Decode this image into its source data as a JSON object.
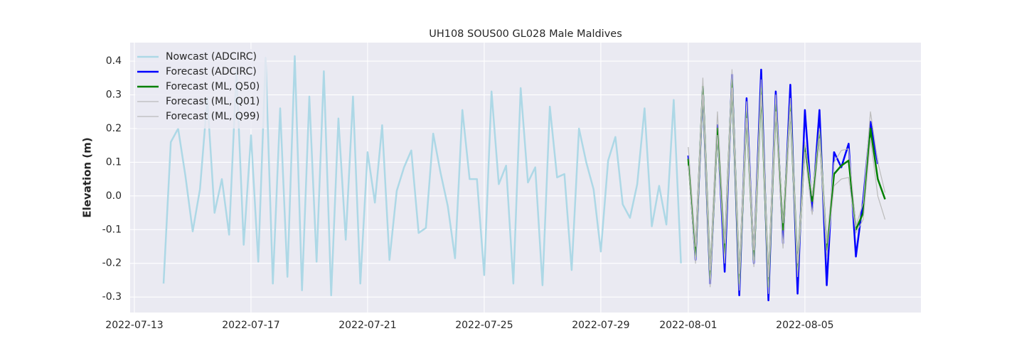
{
  "chart_data": {
    "type": "line",
    "title": "UH108 SOUS00 GL028 Male Maldives",
    "y_label": "Elevation (m)",
    "xlim": [
      "2022-07-12 20:30",
      "2022-08-08 23:30"
    ],
    "xticks": [
      "2022-07-13",
      "2022-07-17",
      "2022-07-21",
      "2022-07-25",
      "2022-07-29",
      "2022-08-01",
      "2022-08-05"
    ],
    "ylim": [
      -0.346,
      0.455
    ],
    "yticks": [
      -0.3,
      -0.2,
      -0.1,
      {
        "value": 0,
        "label": "0.0"
      },
      0.1,
      0.2,
      0.3,
      0.4
    ],
    "grid": true,
    "legend": "upper left",
    "series": [
      {
        "name": "Nowcast (ADCIRC)",
        "color": "#add8e6",
        "linewidth": 2.5,
        "x": [
          "2022-07-14 00:00",
          "2022-07-14 06:00",
          "2022-07-14 12:00",
          "2022-07-14 18:00",
          "2022-07-15 00:00",
          "2022-07-15 06:00",
          "2022-07-15 12:00",
          "2022-07-15 18:00",
          "2022-07-16 00:00",
          "2022-07-16 06:00",
          "2022-07-16 12:00",
          "2022-07-16 18:00",
          "2022-07-17 00:00",
          "2022-07-17 06:00",
          "2022-07-17 12:00",
          "2022-07-17 18:00",
          "2022-07-18 00:00",
          "2022-07-18 06:00",
          "2022-07-18 12:00",
          "2022-07-18 18:00",
          "2022-07-19 00:00",
          "2022-07-19 06:00",
          "2022-07-19 12:00",
          "2022-07-19 18:00",
          "2022-07-20 00:00",
          "2022-07-20 06:00",
          "2022-07-20 12:00",
          "2022-07-20 18:00",
          "2022-07-21 00:00",
          "2022-07-21 06:00",
          "2022-07-21 12:00",
          "2022-07-21 18:00",
          "2022-07-22 00:00",
          "2022-07-22 06:00",
          "2022-07-22 12:00",
          "2022-07-22 18:00",
          "2022-07-23 00:00",
          "2022-07-23 06:00",
          "2022-07-23 12:00",
          "2022-07-23 18:00",
          "2022-07-24 00:00",
          "2022-07-24 06:00",
          "2022-07-24 12:00",
          "2022-07-24 18:00",
          "2022-07-25 00:00",
          "2022-07-25 06:00",
          "2022-07-25 12:00",
          "2022-07-25 18:00",
          "2022-07-26 00:00",
          "2022-07-26 06:00",
          "2022-07-26 12:00",
          "2022-07-26 18:00",
          "2022-07-27 00:00",
          "2022-07-27 06:00",
          "2022-07-27 12:00",
          "2022-07-27 18:00",
          "2022-07-28 00:00",
          "2022-07-28 06:00",
          "2022-07-28 12:00",
          "2022-07-28 18:00",
          "2022-07-29 00:00",
          "2022-07-29 06:00",
          "2022-07-29 12:00",
          "2022-07-29 18:00",
          "2022-07-30 00:00",
          "2022-07-30 06:00",
          "2022-07-30 12:00",
          "2022-07-30 18:00",
          "2022-07-31 00:00",
          "2022-07-31 06:00",
          "2022-07-31 12:00",
          "2022-07-31 18:00"
        ],
        "values": [
          -0.26,
          0.16,
          0.2,
          0.06,
          -0.105,
          0.02,
          0.29,
          -0.05,
          0.05,
          -0.115,
          0.37,
          -0.145,
          0.18,
          -0.195,
          0.41,
          -0.26,
          0.26,
          -0.24,
          0.415,
          -0.28,
          0.295,
          -0.195,
          0.37,
          -0.295,
          0.23,
          -0.13,
          0.295,
          -0.26,
          0.13,
          -0.02,
          0.21,
          -0.19,
          0.015,
          0.085,
          0.135,
          -0.11,
          -0.095,
          0.185,
          0.07,
          -0.03,
          -0.185,
          0.255,
          0.05,
          0.05,
          -0.235,
          0.31,
          0.035,
          0.09,
          -0.26,
          0.32,
          0.04,
          0.085,
          -0.265,
          0.265,
          0.055,
          0.065,
          -0.22,
          0.2,
          0.1,
          0.02,
          -0.165,
          0.105,
          0.175,
          -0.025,
          -0.065,
          0.035,
          0.26,
          -0.09,
          0.03,
          -0.085,
          0.285,
          -0.2
        ]
      },
      {
        "name": "Forecast (ADCIRC)",
        "color": "#0000ff",
        "linewidth": 2.5,
        "x": [
          "2022-08-01 00:00",
          "2022-08-01 06:00",
          "2022-08-01 12:00",
          "2022-08-01 18:00",
          "2022-08-02 00:00",
          "2022-08-02 06:00",
          "2022-08-02 12:00",
          "2022-08-02 18:00",
          "2022-08-03 00:00",
          "2022-08-03 06:00",
          "2022-08-03 12:00",
          "2022-08-03 18:00",
          "2022-08-04 00:00",
          "2022-08-04 06:00",
          "2022-08-04 12:00",
          "2022-08-04 18:00",
          "2022-08-05 00:00",
          "2022-08-05 06:00",
          "2022-08-05 12:00",
          "2022-08-05 18:00",
          "2022-08-06 00:00",
          "2022-08-06 06:00",
          "2022-08-06 12:00",
          "2022-08-06 18:00",
          "2022-08-07 00:00",
          "2022-08-07 06:00",
          "2022-08-07 12:00"
        ],
        "values": [
          0.12,
          -0.19,
          0.32,
          -0.26,
          0.21,
          -0.225,
          0.36,
          -0.295,
          0.29,
          -0.2,
          0.375,
          -0.31,
          0.31,
          -0.14,
          0.33,
          -0.29,
          0.255,
          -0.045,
          0.255,
          -0.265,
          0.13,
          0.085,
          0.155,
          -0.18,
          -0.01,
          0.22,
          0.095
        ]
      },
      {
        "name": "Forecast (ML, Q50)",
        "color": "#008000",
        "linewidth": 2.5,
        "x": [
          "2022-08-01 00:00",
          "2022-08-01 06:00",
          "2022-08-01 12:00",
          "2022-08-01 18:00",
          "2022-08-02 00:00",
          "2022-08-02 06:00",
          "2022-08-02 12:00",
          "2022-08-02 18:00",
          "2022-08-03 00:00",
          "2022-08-03 06:00",
          "2022-08-03 12:00",
          "2022-08-03 18:00",
          "2022-08-04 00:00",
          "2022-08-04 06:00",
          "2022-08-04 12:00",
          "2022-08-04 18:00",
          "2022-08-05 00:00",
          "2022-08-05 06:00",
          "2022-08-05 12:00",
          "2022-08-05 18:00",
          "2022-08-06 00:00",
          "2022-08-06 06:00",
          "2022-08-06 12:00",
          "2022-08-06 18:00",
          "2022-08-07 00:00",
          "2022-08-07 06:00",
          "2022-08-07 12:00",
          "2022-08-07 18:00"
        ],
        "values": [
          0.11,
          -0.18,
          0.325,
          -0.245,
          0.2,
          -0.17,
          0.345,
          -0.26,
          0.25,
          -0.19,
          0.32,
          -0.27,
          0.27,
          -0.1,
          0.27,
          -0.22,
          0.15,
          -0.015,
          0.19,
          -0.16,
          0.065,
          0.09,
          0.105,
          -0.1,
          -0.05,
          0.2,
          0.05,
          -0.01
        ]
      },
      {
        "name": "Forecast (ML, Q01)",
        "color": "#bbbbbb",
        "linewidth": 1.2,
        "x": [
          "2022-08-01 00:00",
          "2022-08-01 06:00",
          "2022-08-01 12:00",
          "2022-08-01 18:00",
          "2022-08-02 00:00",
          "2022-08-02 06:00",
          "2022-08-02 12:00",
          "2022-08-02 18:00",
          "2022-08-03 00:00",
          "2022-08-03 06:00",
          "2022-08-03 12:00",
          "2022-08-03 18:00",
          "2022-08-04 00:00",
          "2022-08-04 06:00",
          "2022-08-04 12:00",
          "2022-08-04 18:00",
          "2022-08-05 00:00",
          "2022-08-05 06:00",
          "2022-08-05 12:00",
          "2022-08-05 18:00",
          "2022-08-06 00:00",
          "2022-08-06 06:00",
          "2022-08-06 12:00",
          "2022-08-06 18:00",
          "2022-08-07 00:00",
          "2022-08-07 06:00",
          "2022-08-07 12:00",
          "2022-08-07 18:00"
        ],
        "values": [
          0.09,
          -0.2,
          0.3,
          -0.27,
          0.18,
          -0.2,
          0.32,
          -0.28,
          0.23,
          -0.21,
          0.3,
          -0.29,
          0.25,
          -0.155,
          0.25,
          -0.24,
          0.13,
          -0.055,
          0.17,
          -0.18,
          0.03,
          0.05,
          0.055,
          -0.11,
          -0.07,
          0.17,
          0.0,
          -0.07
        ]
      },
      {
        "name": "Forecast (ML, Q99)",
        "color": "#bbbbbb",
        "linewidth": 1.2,
        "x": [
          "2022-08-01 00:00",
          "2022-08-01 06:00",
          "2022-08-01 12:00",
          "2022-08-01 18:00",
          "2022-08-02 00:00",
          "2022-08-02 06:00",
          "2022-08-02 12:00",
          "2022-08-02 18:00",
          "2022-08-03 00:00",
          "2022-08-03 06:00",
          "2022-08-03 12:00",
          "2022-08-03 18:00",
          "2022-08-04 00:00",
          "2022-08-04 06:00",
          "2022-08-04 12:00",
          "2022-08-04 18:00",
          "2022-08-05 00:00",
          "2022-08-05 06:00",
          "2022-08-05 12:00",
          "2022-08-05 18:00",
          "2022-08-06 00:00",
          "2022-08-06 06:00",
          "2022-08-06 12:00",
          "2022-08-06 18:00",
          "2022-08-07 00:00",
          "2022-08-07 06:00",
          "2022-08-07 12:00",
          "2022-08-07 18:00"
        ],
        "values": [
          0.145,
          -0.15,
          0.35,
          -0.22,
          0.25,
          -0.14,
          0.375,
          -0.23,
          0.28,
          -0.16,
          0.345,
          -0.24,
          0.3,
          -0.08,
          0.29,
          -0.2,
          0.16,
          0.0,
          0.2,
          -0.14,
          0.1,
          0.135,
          0.14,
          -0.09,
          -0.02,
          0.25,
          0.1,
          0.01
        ]
      }
    ]
  }
}
